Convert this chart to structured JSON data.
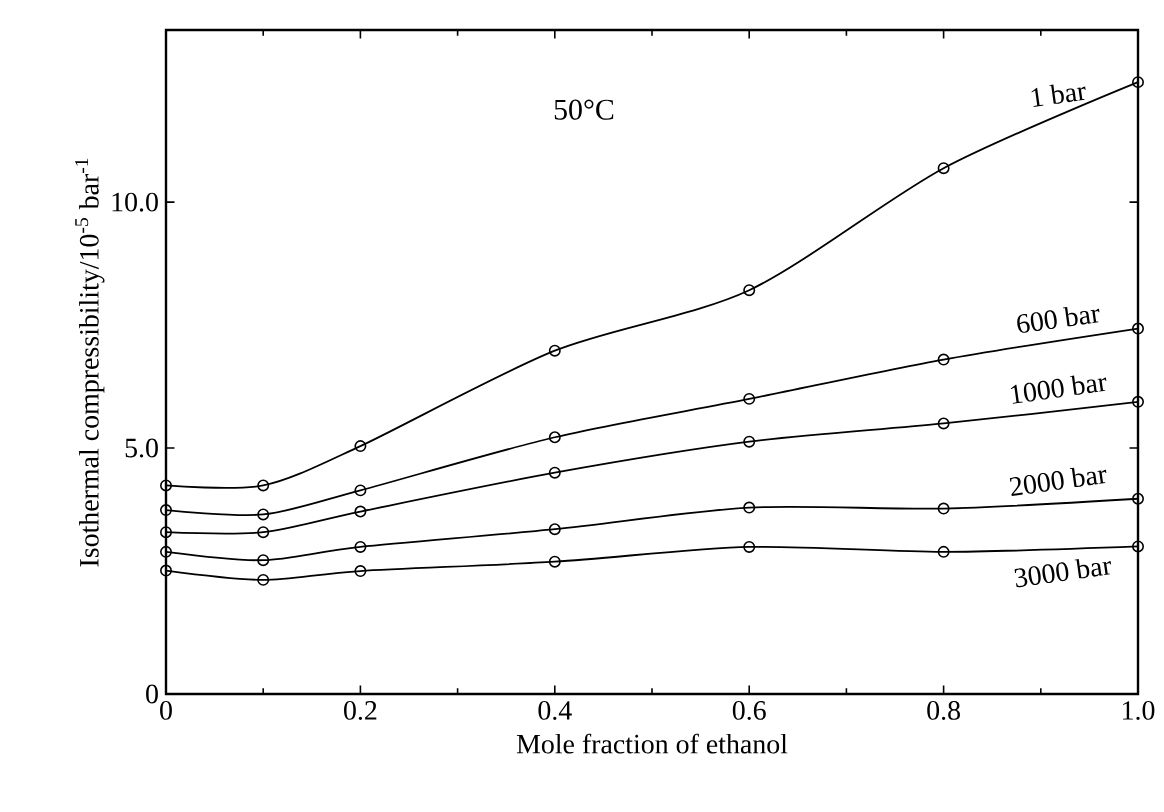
{
  "chart_data": {
    "type": "line",
    "xlabel": "Mole fraction of ethanol",
    "ylabel": "Isothermal compressibility/10$^{-5}$ bar$^{-1}$",
    "annotations": [
      "50°C"
    ],
    "x": [
      0,
      0.1,
      0.2,
      0.4,
      0.6,
      0.8,
      1.0
    ],
    "xlim": [
      0,
      1.0
    ],
    "xticks": [
      0,
      0.2,
      0.4,
      0.6,
      0.8,
      {
        "value": 1.0,
        "label": "1.0"
      }
    ],
    "ylim": [
      0,
      13.5
    ],
    "yticks": [
      0,
      {
        "value": 5,
        "label": "5.0"
      },
      {
        "value": 10,
        "label": "10.0"
      }
    ],
    "marker": "circle",
    "grid": false,
    "series": [
      {
        "name": "1 bar",
        "color": "#000000",
        "values": [
          4.24,
          4.24,
          5.04,
          6.98,
          8.21,
          10.69,
          12.44
        ]
      },
      {
        "name": "600 bar",
        "color": "#000000",
        "values": [
          3.74,
          3.65,
          4.14,
          5.22,
          6.0,
          6.8,
          7.43
        ]
      },
      {
        "name": "1000 bar",
        "color": "#000000",
        "values": [
          3.29,
          3.29,
          3.71,
          4.5,
          5.13,
          5.5,
          5.94
        ]
      },
      {
        "name": "2000 bar",
        "color": "#000000",
        "values": [
          2.89,
          2.72,
          2.99,
          3.35,
          3.79,
          3.77,
          3.97
        ]
      },
      {
        "name": "3000 bar",
        "color": "#000000",
        "values": [
          2.51,
          2.32,
          2.5,
          2.69,
          2.99,
          2.89,
          3.0
        ]
      }
    ]
  }
}
